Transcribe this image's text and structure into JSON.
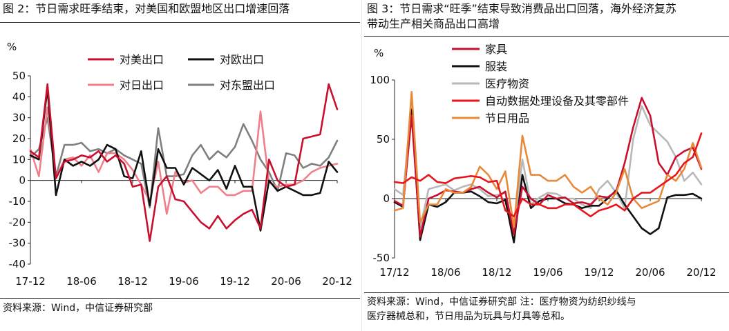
{
  "charts": {
    "left": {
      "figure_title": "图 2：节日需求旺季结束，对美国和欧盟地区出口增速回落",
      "source": "资料来源：Wind，中信证券研究部"
    },
    "right": {
      "figure_title": "图 3：节日需求“旺季”结束导致消费品出口回落，海外经济复苏\n带动生产相关商品出口高增",
      "source": "资料来源：Wind，中信证券研究部      注：医疗物资为纺织纱线与\n医疗器械总和，节日用品为玩具与灯具等总和。"
    }
  },
  "chart_data": [
    {
      "type": "line",
      "title": "图 2：节日需求旺季结束，对美国和欧盟地区出口增速回落",
      "ylabel": "%",
      "ylim": [
        -40,
        50
      ],
      "yticks": [
        -40,
        -30,
        -20,
        -10,
        0,
        10,
        20,
        30,
        40,
        50
      ],
      "x_range": [
        "2017-12",
        "2020-12"
      ],
      "xtick_labels": [
        "17-12",
        "18-06",
        "18-12",
        "19-06",
        "19-12",
        "20-06",
        "20-12"
      ],
      "legend_position": "top",
      "series": [
        {
          "name": "对美出口",
          "color": "#c8102e",
          "values": [
            14,
            11,
            46,
            1,
            9,
            10,
            12,
            11,
            14,
            9,
            12,
            8,
            -3,
            -2,
            -29,
            -3,
            2,
            -9,
            -10,
            -15,
            -20,
            -23,
            -17,
            -23,
            -19,
            -16,
            -14,
            -23,
            10,
            0,
            -3,
            -2,
            20,
            21,
            22,
            46,
            34
          ]
        },
        {
          "name": "对欧出口",
          "color": "#111111",
          "values": [
            12,
            10,
            44,
            -7,
            10,
            7,
            9,
            7,
            10,
            17,
            15,
            2,
            1,
            14,
            -12,
            15,
            6,
            6,
            -2,
            6,
            3,
            0,
            5,
            -4,
            7,
            -3,
            -3,
            -24,
            0,
            -5,
            -3,
            -5,
            -7,
            -7,
            -6,
            9,
            4
          ]
        },
        {
          "name": "对日出口",
          "color": "#ef7f8b",
          "values": [
            15,
            2,
            35,
            1,
            10,
            11,
            7,
            12,
            4,
            13,
            13,
            10,
            5,
            -2,
            -10,
            9,
            -16,
            4,
            -1,
            0,
            -6,
            -3,
            -3,
            -7,
            -7,
            -5,
            -5,
            33,
            -1,
            -3,
            -2,
            -2,
            0,
            4,
            6,
            7,
            8
          ]
        },
        {
          "name": "对东盟出口",
          "color": "#7f7f7f",
          "values": [
            11,
            15,
            30,
            2,
            17,
            17,
            18,
            14,
            15,
            13,
            15,
            12,
            10,
            8,
            -13,
            25,
            2,
            2,
            3,
            12,
            17,
            10,
            14,
            11,
            16,
            27,
            19,
            10,
            4,
            -5,
            13,
            12,
            6,
            8,
            7,
            11,
            19
          ]
        }
      ]
    },
    {
      "type": "line",
      "title": "图 3：节日需求“旺季”结束导致消费品出口回落，海外经济复苏带动生产相关商品出口高增",
      "ylabel": "%",
      "ylim": [
        -50,
        100
      ],
      "yticks": [
        -50,
        0,
        50,
        100
      ],
      "x_range": [
        "2017-12",
        "2020-12"
      ],
      "xtick_labels": [
        "17/12",
        "18/06",
        "18/12",
        "19/06",
        "19/12",
        "20/06",
        "20/12"
      ],
      "legend_position": "top-left",
      "series": [
        {
          "name": "家具",
          "color": "#c8102e",
          "values": [
            -2,
            -6,
            70,
            -32,
            0,
            3,
            7,
            6,
            5,
            8,
            10,
            5,
            1,
            6,
            -30,
            10,
            0,
            -5,
            3,
            0,
            1,
            -4,
            -3,
            -5,
            2,
            1,
            6,
            30,
            60,
            85,
            70,
            30,
            20,
            35,
            40,
            43,
            25
          ]
        },
        {
          "name": "服装",
          "color": "#111111",
          "values": [
            -3,
            -7,
            75,
            -35,
            -5,
            -7,
            -3,
            5,
            5,
            6,
            2,
            -3,
            -4,
            -1,
            -37,
            20,
            -8,
            -2,
            0,
            0,
            -4,
            -5,
            -8,
            -6,
            -6,
            0,
            7,
            -5,
            -15,
            -25,
            -30,
            -25,
            1,
            3,
            3,
            4,
            0
          ]
        },
        {
          "name": "医疗物资",
          "color": "#b8b8b8",
          "values": [
            8,
            3,
            80,
            -25,
            8,
            10,
            12,
            7,
            10,
            12,
            8,
            2,
            3,
            5,
            -28,
            33,
            -5,
            1,
            5,
            4,
            0,
            0,
            -5,
            -8,
            8,
            15,
            5,
            -8,
            50,
            78,
            62,
            55,
            48,
            35,
            15,
            22,
            12
          ]
        },
        {
          "name": "自动数据处理设备及其零部件",
          "color": "#e8151b",
          "values": [
            14,
            13,
            18,
            15,
            20,
            14,
            13,
            17,
            18,
            19,
            18,
            14,
            15,
            -10,
            -15,
            0,
            -5,
            -5,
            -8,
            -8,
            -5,
            -5,
            -10,
            -15,
            -10,
            -8,
            -5,
            -10,
            0,
            5,
            5,
            10,
            15,
            20,
            30,
            35,
            55
          ]
        },
        {
          "name": "节日用品",
          "color": "#e8893a",
          "values": [
            -10,
            -8,
            90,
            -20,
            -5,
            -5,
            8,
            5,
            5,
            10,
            27,
            20,
            8,
            23,
            -24,
            53,
            20,
            20,
            15,
            15,
            20,
            10,
            5,
            10,
            0,
            -5,
            5,
            25,
            0,
            -8,
            -5,
            -2,
            20,
            15,
            25,
            47,
            26
          ]
        }
      ]
    }
  ]
}
